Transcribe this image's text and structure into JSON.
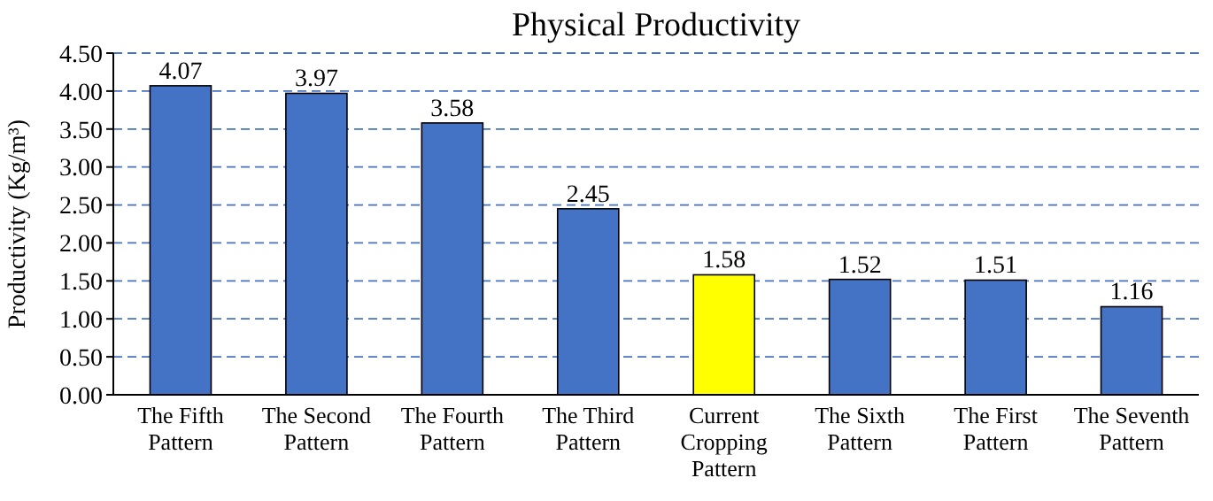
{
  "chart_data": {
    "type": "bar",
    "title": "Physical Productivity",
    "ylabel": "Productivity (Kg/m³)",
    "categories": [
      "The Fifth Pattern",
      "The Second Pattern",
      "The Fourth Pattern",
      "The Third Pattern",
      "Current Cropping Pattern",
      "The Sixth Pattern",
      "The First Pattern",
      "The Seventh Pattern"
    ],
    "values": [
      4.07,
      3.97,
      3.58,
      2.45,
      1.58,
      1.52,
      1.51,
      1.16
    ],
    "colors": [
      "#4472c4",
      "#4472c4",
      "#4472c4",
      "#4472c4",
      "#ffff00",
      "#4472c4",
      "#4472c4",
      "#4472c4"
    ],
    "ylim": [
      0,
      4.5
    ],
    "yticks": [
      {
        "value": 0,
        "label": "0.00"
      },
      {
        "value": 0.5,
        "label": "0.50"
      },
      {
        "value": 1,
        "label": "1.00"
      },
      {
        "value": 1.5,
        "label": "1.50"
      },
      {
        "value": 2,
        "label": "2.00"
      },
      {
        "value": 2.5,
        "label": "2.50"
      },
      {
        "value": 3,
        "label": "3.00"
      },
      {
        "value": 3.5,
        "label": "3.50"
      },
      {
        "value": 4,
        "label": "4.00"
      },
      {
        "value": 4.5,
        "label": "4.50"
      }
    ],
    "grid": "y",
    "data_labels": true
  }
}
